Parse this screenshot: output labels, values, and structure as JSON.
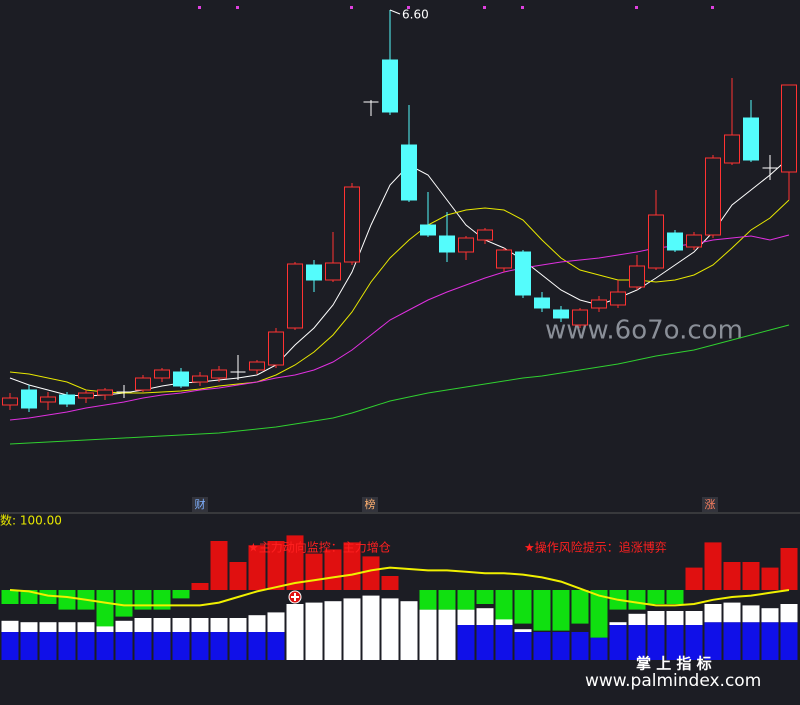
{
  "chart_data": [
    {
      "type": "candlestick",
      "annotation": "6.60",
      "ylim": [
        1.6,
        6.7
      ],
      "up_color": "#ff3232",
      "down_color": "#54fcfc",
      "flat_color": "#ffffff",
      "open": [
        2.65,
        2.8,
        2.68,
        2.75,
        2.72,
        2.75,
        2.78,
        2.8,
        2.92,
        2.98,
        2.88,
        2.92,
        2.98,
        3.0,
        3.05,
        3.42,
        4.05,
        3.9,
        4.08,
        5.68,
        6.1,
        5.25,
        4.45,
        4.34,
        4.18,
        4.3,
        4.02,
        4.18,
        3.72,
        3.6,
        3.45,
        3.62,
        3.65,
        3.83,
        4.02,
        4.37,
        4.23,
        4.35,
        5.07,
        5.52,
        5.02,
        4.98
      ],
      "high": [
        2.77,
        2.85,
        2.78,
        2.78,
        2.8,
        2.82,
        2.85,
        2.95,
        3.02,
        3.02,
        2.98,
        3.04,
        3.15,
        3.1,
        3.42,
        4.08,
        4.1,
        4.38,
        4.87,
        5.7,
        6.6,
        5.65,
        4.78,
        4.58,
        4.34,
        4.42,
        4.22,
        4.2,
        3.78,
        3.64,
        3.62,
        3.74,
        3.9,
        4.15,
        4.8,
        4.4,
        4.38,
        5.15,
        5.92,
        5.7,
        5.15,
        5.85
      ],
      "low": [
        2.6,
        2.58,
        2.6,
        2.63,
        2.67,
        2.7,
        2.72,
        2.78,
        2.88,
        2.82,
        2.84,
        2.88,
        2.9,
        2.96,
        3.02,
        3.4,
        3.78,
        3.88,
        4.05,
        5.54,
        5.55,
        4.68,
        4.33,
        4.08,
        4.1,
        4.26,
        3.98,
        3.72,
        3.58,
        3.48,
        3.42,
        3.58,
        3.62,
        3.8,
        4.0,
        4.18,
        4.2,
        4.32,
        5.05,
        5.08,
        4.9,
        4.7
      ],
      "close": [
        2.72,
        2.62,
        2.73,
        2.66,
        2.77,
        2.8,
        2.78,
        2.92,
        3.0,
        2.84,
        2.94,
        3.0,
        2.98,
        3.08,
        3.38,
        4.06,
        3.9,
        4.07,
        4.83,
        5.68,
        5.58,
        4.7,
        4.35,
        4.18,
        4.32,
        4.4,
        4.2,
        3.75,
        3.62,
        3.52,
        3.6,
        3.7,
        3.78,
        4.04,
        4.55,
        4.2,
        4.35,
        5.12,
        5.35,
        5.1,
        5.02,
        5.85
      ],
      "lines": [
        {
          "color": "#ffffff",
          "values": [
            2.92,
            2.85,
            2.8,
            2.75,
            2.74,
            2.75,
            2.77,
            2.8,
            2.84,
            2.87,
            2.88,
            2.9,
            2.92,
            2.95,
            3.05,
            3.25,
            3.42,
            3.65,
            3.98,
            4.45,
            4.85,
            5.05,
            4.95,
            4.7,
            4.45,
            4.3,
            4.22,
            4.1,
            3.95,
            3.8,
            3.7,
            3.65,
            3.72,
            3.8,
            3.92,
            4.05,
            4.18,
            4.38,
            4.65,
            4.8,
            4.95,
            5.12
          ]
        },
        {
          "color": "#e8e800",
          "values": [
            2.98,
            2.96,
            2.92,
            2.88,
            2.8,
            2.78,
            2.77,
            2.77,
            2.78,
            2.79,
            2.81,
            2.84,
            2.86,
            2.88,
            2.95,
            3.05,
            3.18,
            3.35,
            3.58,
            3.88,
            4.12,
            4.3,
            4.45,
            4.55,
            4.6,
            4.62,
            4.6,
            4.5,
            4.3,
            4.12,
            4.0,
            3.95,
            3.9,
            3.9,
            3.88,
            3.9,
            3.95,
            4.05,
            4.22,
            4.4,
            4.52,
            4.7
          ]
        },
        {
          "color": "#e030e0",
          "values": [
            2.5,
            2.52,
            2.55,
            2.58,
            2.62,
            2.65,
            2.68,
            2.72,
            2.75,
            2.77,
            2.8,
            2.82,
            2.85,
            2.88,
            2.92,
            2.95,
            3.0,
            3.08,
            3.2,
            3.35,
            3.5,
            3.6,
            3.7,
            3.78,
            3.85,
            3.92,
            3.98,
            4.02,
            4.05,
            4.08,
            4.1,
            4.12,
            4.15,
            4.18,
            4.22,
            4.24,
            4.26,
            4.3,
            4.32,
            4.34,
            4.3,
            4.35
          ]
        },
        {
          "color": "#30d030",
          "values": [
            2.26,
            2.27,
            2.28,
            2.29,
            2.3,
            2.31,
            2.32,
            2.33,
            2.34,
            2.35,
            2.36,
            2.37,
            2.39,
            2.41,
            2.43,
            2.46,
            2.49,
            2.52,
            2.57,
            2.63,
            2.69,
            2.73,
            2.77,
            2.8,
            2.83,
            2.86,
            2.89,
            2.92,
            2.94,
            2.97,
            3.0,
            3.03,
            3.06,
            3.1,
            3.14,
            3.17,
            3.2,
            3.25,
            3.3,
            3.35,
            3.4,
            3.45
          ]
        }
      ],
      "markers": [
        "财",
        "榜",
        "涨"
      ],
      "watermark": "www.6o7o.com"
    },
    {
      "type": "indicator_bars",
      "label": "数: 100.00",
      "notes": [
        "★主力动向监控：主力增仓",
        "★操作风险提示：追涨博弈"
      ],
      "ylim": [
        0,
        100
      ],
      "baseline": 50,
      "series": [
        {
          "name": "blue",
          "color": "#1010e8",
          "values": [
            20,
            20,
            20,
            20,
            20,
            20,
            20,
            20,
            20,
            20,
            20,
            20,
            20,
            20,
            20,
            null,
            null,
            null,
            null,
            null,
            null,
            null,
            null,
            null,
            25,
            25,
            25,
            20,
            20,
            20,
            20,
            16,
            25,
            25,
            25,
            25,
            25,
            27,
            27,
            27,
            27,
            27
          ]
        },
        {
          "name": "white",
          "color": "#ffffff",
          "values": [
            8,
            7,
            7,
            7,
            7,
            7,
            8,
            10,
            10,
            10,
            10,
            10,
            10,
            12,
            14,
            40,
            41,
            42,
            44,
            46,
            44,
            42,
            36,
            36,
            11,
            12,
            5,
            2,
            null,
            null,
            null,
            null,
            2,
            8,
            10,
            10,
            10,
            13,
            14,
            12,
            10,
            13
          ]
        },
        {
          "name": "red",
          "color": "#e01010",
          "values": [
            null,
            null,
            null,
            null,
            null,
            null,
            null,
            null,
            null,
            null,
            5,
            35,
            20,
            32,
            35,
            39,
            26,
            29,
            34,
            24,
            10,
            null,
            null,
            null,
            null,
            null,
            null,
            null,
            null,
            null,
            null,
            null,
            null,
            null,
            null,
            null,
            16,
            34,
            20,
            20,
            16,
            30
          ]
        },
        {
          "name": "green",
          "color": "#10e010",
          "values": [
            10,
            10,
            10,
            14,
            14,
            26,
            19,
            14,
            14,
            6,
            null,
            null,
            null,
            null,
            null,
            null,
            null,
            null,
            null,
            null,
            null,
            null,
            14,
            14,
            14,
            10,
            21,
            24,
            29,
            29,
            24,
            34,
            14,
            14,
            10,
            10,
            null,
            null,
            null,
            null,
            null,
            null
          ]
        }
      ],
      "line": {
        "color": "#f0f000",
        "values": [
          50,
          49,
          46,
          45,
          43,
          41,
          39,
          39,
          39,
          39,
          39,
          41,
          45,
          49,
          52,
          55,
          57,
          59,
          61,
          64,
          66,
          65,
          64,
          64,
          63,
          62,
          62,
          61,
          59,
          56,
          51,
          46,
          43,
          41,
          39,
          39,
          40,
          43,
          45,
          46,
          48,
          50
        ]
      }
    }
  ],
  "watermarks": [
    "掌 上 指 标",
    "www.palmindex.com"
  ]
}
